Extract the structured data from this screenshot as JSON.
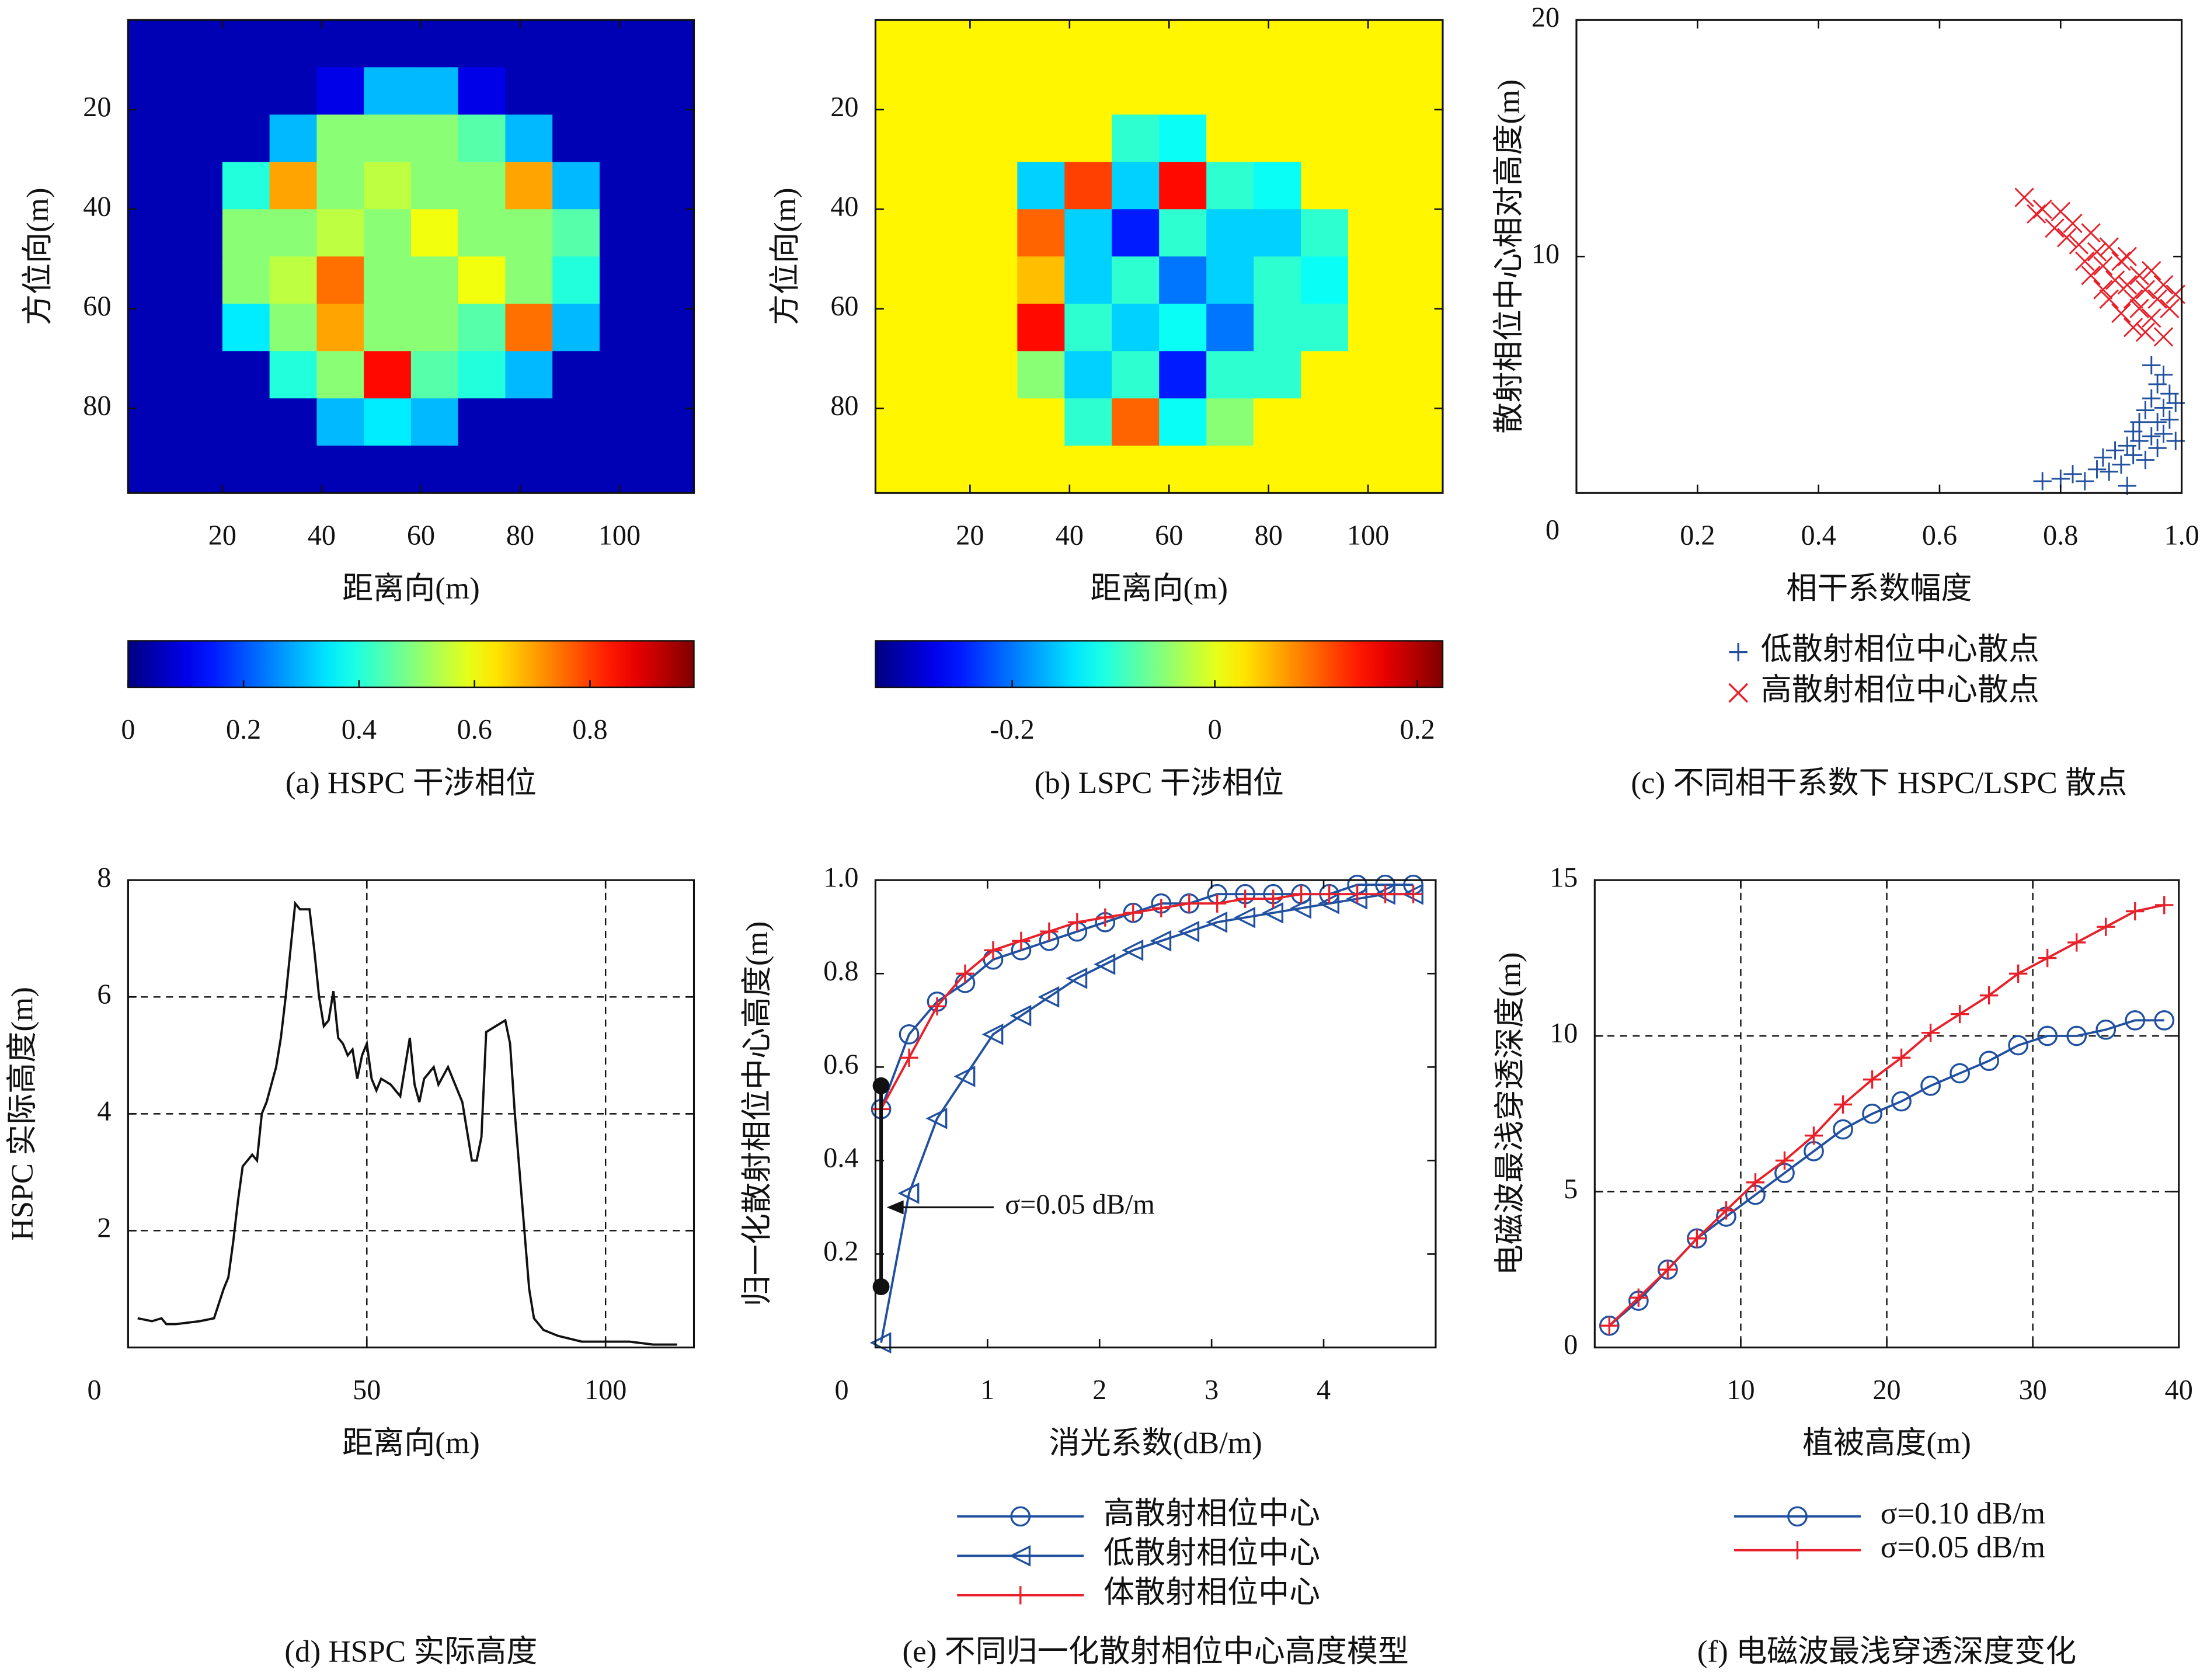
{
  "chart_data": [
    {
      "type": "heatmap",
      "caption": "(a) HSPC 干涉相位",
      "xlabel": "距离向(m)",
      "ylabel": "方位向(m)",
      "xlim": [
        1,
        115
      ],
      "ylim": [
        97,
        2
      ],
      "xticks": [
        20,
        40,
        60,
        80,
        100
      ],
      "yticks": [
        20,
        40,
        60,
        80
      ],
      "colormap": "jet",
      "clim": [
        0,
        0.98
      ],
      "cticks": [
        0,
        0.2,
        0.4,
        0.6,
        0.8
      ],
      "z": [
        [
          0.05,
          0.05,
          0.05,
          0.05,
          0.05,
          0.05,
          0.05,
          0.05,
          0.05,
          0.05,
          0.05,
          0.05
        ],
        [
          0.05,
          0.05,
          0.05,
          0.05,
          0.1,
          0.3,
          0.3,
          0.1,
          0.05,
          0.05,
          0.05,
          0.05
        ],
        [
          0.05,
          0.05,
          0.05,
          0.3,
          0.5,
          0.5,
          0.5,
          0.45,
          0.3,
          0.05,
          0.05,
          0.05
        ],
        [
          0.05,
          0.05,
          0.4,
          0.7,
          0.5,
          0.55,
          0.5,
          0.5,
          0.7,
          0.3,
          0.05,
          0.05
        ],
        [
          0.05,
          0.05,
          0.5,
          0.5,
          0.55,
          0.5,
          0.6,
          0.5,
          0.5,
          0.45,
          0.05,
          0.05
        ],
        [
          0.05,
          0.05,
          0.5,
          0.55,
          0.75,
          0.5,
          0.5,
          0.6,
          0.5,
          0.4,
          0.05,
          0.05
        ],
        [
          0.05,
          0.05,
          0.35,
          0.5,
          0.7,
          0.5,
          0.5,
          0.45,
          0.75,
          0.3,
          0.05,
          0.05
        ],
        [
          0.05,
          0.05,
          0.05,
          0.4,
          0.5,
          0.85,
          0.45,
          0.4,
          0.3,
          0.05,
          0.05,
          0.05
        ],
        [
          0.05,
          0.05,
          0.05,
          0.05,
          0.3,
          0.35,
          0.3,
          0.05,
          0.05,
          0.05,
          0.05,
          0.05
        ],
        [
          0.05,
          0.05,
          0.05,
          0.05,
          0.05,
          0.05,
          0.05,
          0.05,
          0.05,
          0.05,
          0.05,
          0.05
        ]
      ]
    },
    {
      "type": "heatmap",
      "caption": "(b) LSPC 干涉相位",
      "xlabel": "距离向(m)",
      "ylabel": "方位向(m)",
      "xlim": [
        1,
        115
      ],
      "ylim": [
        97,
        2
      ],
      "xticks": [
        20,
        40,
        60,
        80,
        100
      ],
      "yticks": [
        20,
        40,
        60,
        80
      ],
      "colormap": "jet",
      "clim": [
        -0.335,
        0.225
      ],
      "cticks": [
        -0.2,
        0,
        0.2
      ],
      "z": [
        [
          0.02,
          0.02,
          0.02,
          0.02,
          0.02,
          0.02,
          0.02,
          0.02,
          0.02,
          0.02,
          0.02,
          0.02
        ],
        [
          0.02,
          0.02,
          0.02,
          0.02,
          0.02,
          0.02,
          0.02,
          0.02,
          0.02,
          0.02,
          0.02,
          0.02
        ],
        [
          0.02,
          0.02,
          0.02,
          0.02,
          0.02,
          -0.1,
          -0.12,
          0.02,
          0.02,
          0.02,
          0.02,
          0.02
        ],
        [
          0.02,
          0.02,
          0.02,
          -0.15,
          0.12,
          -0.15,
          0.15,
          -0.1,
          -0.12,
          0.02,
          0.02,
          0.02
        ],
        [
          0.02,
          0.02,
          0.02,
          0.1,
          -0.15,
          -0.25,
          -0.1,
          -0.15,
          -0.15,
          -0.1,
          0.02,
          0.02
        ],
        [
          0.02,
          0.02,
          0.02,
          0.05,
          -0.15,
          -0.1,
          -0.2,
          -0.15,
          -0.1,
          -0.12,
          0.02,
          0.02
        ],
        [
          0.02,
          0.02,
          0.02,
          0.15,
          -0.1,
          -0.15,
          -0.12,
          -0.2,
          -0.1,
          -0.1,
          0.02,
          0.02
        ],
        [
          0.02,
          0.02,
          0.02,
          -0.05,
          -0.15,
          -0.1,
          -0.25,
          -0.1,
          -0.1,
          0.02,
          0.02,
          0.02
        ],
        [
          0.02,
          0.02,
          0.02,
          0.02,
          -0.1,
          0.1,
          -0.12,
          -0.05,
          0.02,
          0.02,
          0.02,
          0.02
        ],
        [
          0.02,
          0.02,
          0.02,
          0.02,
          0.02,
          0.02,
          0.02,
          0.02,
          0.02,
          0.02,
          0.02,
          0.02
        ]
      ]
    },
    {
      "type": "scatter",
      "caption": "(c) 不同相干系数下 HSPC/LSPC 散点",
      "xlabel": "相干系数幅度",
      "ylabel": "散射相位中心相对高度(m)",
      "xlim": [
        0,
        1
      ],
      "ylim": [
        0,
        20
      ],
      "xticks": [
        0.2,
        0.4,
        0.6,
        0.8,
        {
          "value": 1,
          "label": "1.0"
        }
      ],
      "yticks": [
        0,
        10,
        20
      ],
      "series": [
        {
          "name": "低散射相位中心散点",
          "color": "#2150a0",
          "marker": "plus",
          "x": [
            0.8,
            0.82,
            0.84,
            0.86,
            0.87,
            0.88,
            0.89,
            0.9,
            0.91,
            0.91,
            0.92,
            0.92,
            0.93,
            0.93,
            0.94,
            0.94,
            0.95,
            0.95,
            0.96,
            0.96,
            0.96,
            0.97,
            0.97,
            0.97,
            0.98,
            0.98,
            0.99,
            0.99,
            0.95,
            0.77
          ],
          "y": [
            0.6,
            0.8,
            0.5,
            1.0,
            1.5,
            0.9,
            1.8,
            1.2,
            2.0,
            0.3,
            1.6,
            2.6,
            2.2,
            3.0,
            1.4,
            3.5,
            2.4,
            4.0,
            3.0,
            4.6,
            1.9,
            3.6,
            5.0,
            2.5,
            4.2,
            3.1,
            3.8,
            2.2,
            5.4,
            0.5
          ]
        },
        {
          "name": "高散射相位中心散点",
          "color": "#e8202a",
          "marker": "cross",
          "x": [
            0.74,
            0.76,
            0.77,
            0.79,
            0.8,
            0.81,
            0.82,
            0.83,
            0.84,
            0.85,
            0.85,
            0.86,
            0.87,
            0.87,
            0.88,
            0.88,
            0.89,
            0.9,
            0.9,
            0.91,
            0.91,
            0.92,
            0.92,
            0.93,
            0.93,
            0.94,
            0.95,
            0.95,
            0.96,
            0.97,
            0.98,
            0.99,
            0.97,
            0.94
          ],
          "y": [
            12.5,
            11.8,
            12.0,
            11.2,
            11.9,
            10.8,
            11.4,
            10.5,
            9.8,
            11.0,
            9.2,
            10.2,
            8.6,
            9.6,
            10.4,
            8.2,
            9.0,
            9.8,
            7.6,
            8.8,
            10.0,
            8.2,
            7.0,
            9.2,
            7.8,
            8.6,
            9.4,
            7.4,
            8.2,
            8.8,
            7.8,
            8.4,
            6.6,
            6.8
          ]
        }
      ]
    },
    {
      "type": "line",
      "caption": "(d) HSPC 实际高度",
      "xlabel": "距离向(m)",
      "ylabel": "HSPC 实际高度(m)",
      "xlim": [
        0,
        118.5
      ],
      "ylim": [
        0,
        8
      ],
      "xticks": [
        0,
        50,
        100
      ],
      "yticks": [
        2,
        4,
        6,
        8
      ],
      "grid": true,
      "x": [
        2,
        5,
        7,
        8,
        10,
        15,
        18,
        20,
        21,
        22,
        23,
        24,
        25,
        26,
        27,
        28,
        29,
        30,
        31,
        32,
        33,
        34,
        35,
        36,
        37,
        38,
        39,
        40,
        41,
        42,
        43,
        44,
        45,
        46,
        47,
        48,
        49,
        50,
        51,
        52,
        53,
        55,
        57,
        59,
        60,
        61,
        62,
        64,
        65,
        67,
        68,
        70,
        72,
        73,
        74,
        75,
        77,
        79,
        80,
        81,
        82,
        83,
        84,
        85,
        87,
        90,
        95,
        100,
        105,
        110,
        115
      ],
      "series": [
        {
          "color": "#111111",
          "marker": "none",
          "values": [
            0.5,
            0.45,
            0.5,
            0.4,
            0.4,
            0.45,
            0.5,
            1.0,
            1.2,
            1.8,
            2.5,
            3.1,
            3.2,
            3.3,
            3.2,
            4.0,
            4.2,
            4.5,
            4.8,
            5.3,
            6.0,
            6.8,
            7.6,
            7.5,
            7.5,
            7.5,
            6.8,
            6.0,
            5.5,
            5.6,
            6.1,
            5.3,
            5.2,
            5.0,
            5.1,
            4.6,
            5.0,
            5.2,
            4.6,
            4.4,
            4.6,
            4.5,
            4.3,
            5.3,
            4.5,
            4.2,
            4.6,
            4.8,
            4.5,
            4.8,
            4.6,
            4.2,
            3.2,
            3.2,
            3.6,
            5.4,
            5.5,
            5.6,
            5.2,
            4.0,
            3.0,
            2.0,
            1.0,
            0.5,
            0.3,
            0.2,
            0.1,
            0.1,
            0.1,
            0.05,
            0.05
          ]
        }
      ]
    },
    {
      "type": "line",
      "caption": "(e) 不同归一化散射相位中心高度模型",
      "xlabel": "消光系数(dB/m)",
      "ylabel": "归一化散射相位中心高度(m)",
      "xlim": [
        0,
        5
      ],
      "ylim": [
        0,
        1
      ],
      "xticks": [
        0,
        1,
        2,
        3,
        4
      ],
      "yticks": [
        0.2,
        0.4,
        0.6,
        0.8,
        {
          "value": 1,
          "label": "1.0"
        }
      ],
      "x": [
        0.05,
        0.3,
        0.55,
        0.8,
        1.05,
        1.3,
        1.55,
        1.8,
        2.05,
        2.3,
        2.55,
        2.8,
        3.05,
        3.3,
        3.55,
        3.8,
        4.05,
        4.3,
        4.55,
        4.8
      ],
      "series": [
        {
          "name": "高散射相位中心",
          "color": "#2150a0",
          "marker": "circle",
          "values": [
            0.51,
            0.67,
            0.74,
            0.78,
            0.83,
            0.85,
            0.87,
            0.89,
            0.91,
            0.93,
            0.95,
            0.95,
            0.97,
            0.97,
            0.97,
            0.97,
            0.97,
            0.99,
            0.99,
            0.99
          ]
        },
        {
          "name": "低散射相位中心",
          "color": "#2150a0",
          "marker": "triangle",
          "values": [
            0.01,
            0.33,
            0.49,
            0.58,
            0.67,
            0.71,
            0.75,
            0.79,
            0.82,
            0.85,
            0.87,
            0.89,
            0.91,
            0.92,
            0.93,
            0.94,
            0.95,
            0.96,
            0.97,
            0.97
          ]
        },
        {
          "name": "体散射相位中心",
          "color": "#e8202a",
          "marker": "plus",
          "values": [
            0.51,
            0.62,
            0.73,
            0.8,
            0.85,
            0.87,
            0.89,
            0.91,
            0.92,
            0.93,
            0.94,
            0.95,
            0.95,
            0.96,
            0.96,
            0.97,
            0.97,
            0.97,
            0.97,
            0.97
          ]
        }
      ],
      "highlight": {
        "x": [
          0.05,
          0.05
        ],
        "y": [
          0.56,
          0.13
        ]
      },
      "annotation": "σ=0.05 dB/m"
    },
    {
      "type": "line",
      "caption": "(f) 电磁波最浅穿透深度变化",
      "xlabel": "植被高度(m)",
      "ylabel": "电磁波最浅穿透深度(m)",
      "xlim": [
        0,
        40
      ],
      "ylim": [
        0,
        15
      ],
      "xticks": [
        10,
        20,
        30,
        40
      ],
      "yticks": [
        0,
        5,
        10,
        15
      ],
      "grid": true,
      "x": [
        1,
        3,
        5,
        7,
        9,
        11,
        13,
        15,
        17,
        19,
        21,
        23,
        25,
        27,
        29,
        31,
        33,
        35,
        37,
        39
      ],
      "series": [
        {
          "name": "σ=0.10 dB/m",
          "color": "#2150a0",
          "marker": "circle",
          "values": [
            0.7,
            1.5,
            2.5,
            3.5,
            4.2,
            4.9,
            5.6,
            6.3,
            7.0,
            7.5,
            7.9,
            8.4,
            8.8,
            9.2,
            9.7,
            10.0,
            10.0,
            10.2,
            10.5,
            10.5
          ]
        },
        {
          "name": "σ=0.05 dB/m",
          "color": "#e8202a",
          "marker": "plus",
          "values": [
            0.7,
            1.6,
            2.5,
            3.5,
            4.4,
            5.3,
            6.0,
            6.8,
            7.8,
            8.6,
            9.3,
            10.1,
            10.7,
            11.3,
            12.0,
            12.5,
            13.0,
            13.5,
            14.0,
            14.2
          ]
        }
      ]
    }
  ]
}
